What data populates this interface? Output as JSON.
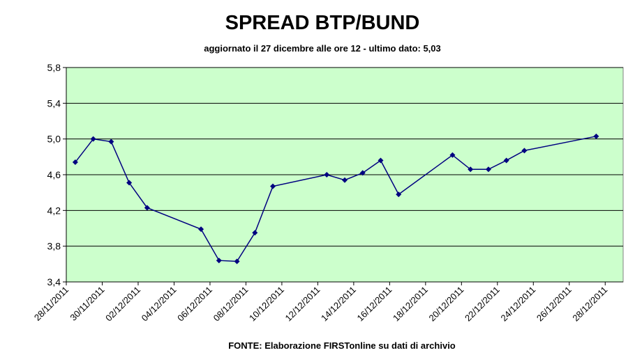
{
  "chart_data": {
    "type": "line",
    "title": "SPREAD BTP/BUND",
    "subtitle": "aggiornato il 27 dicembre alle ore 12 - ultimo dato: 5,03",
    "source": "FONTE: Elaborazione FIRSTonline su dati di archivio",
    "x": [
      "28/11/2011",
      "29/11/2011",
      "30/11/2011",
      "01/12/2011",
      "02/12/2011",
      "05/12/2011",
      "06/12/2011",
      "07/12/2011",
      "08/12/2011",
      "09/12/2011",
      "12/12/2011",
      "13/12/2011",
      "14/12/2011",
      "15/12/2011",
      "16/12/2011",
      "19/12/2011",
      "20/12/2011",
      "21/12/2011",
      "22/12/2011",
      "23/12/2011",
      "27/12/2011"
    ],
    "series": [
      {
        "name": "Spread",
        "color": "#000080",
        "values": [
          4.74,
          5.0,
          4.97,
          4.51,
          4.23,
          3.99,
          3.64,
          3.63,
          3.95,
          4.47,
          4.6,
          4.54,
          4.62,
          4.76,
          4.38,
          4.82,
          4.66,
          4.66,
          4.76,
          4.87,
          5.03
        ]
      }
    ],
    "xlim": [
      "28/11/2011",
      "29/12/2011"
    ],
    "xticks": [
      "28/11/2011",
      "30/11/2011",
      "02/12/2011",
      "04/12/2011",
      "06/12/2011",
      "08/12/2011",
      "10/12/2011",
      "12/12/2011",
      "14/12/2011",
      "16/12/2011",
      "18/12/2011",
      "20/12/2011",
      "22/12/2011",
      "24/12/2011",
      "26/12/2011",
      "28/12/2011"
    ],
    "ylim": [
      3.4,
      5.8
    ],
    "yticks": [
      {
        "value": 3.4,
        "label": "3,4"
      },
      {
        "value": 3.8,
        "label": "3,8"
      },
      {
        "value": 4.2,
        "label": "4,2"
      },
      {
        "value": 4.6,
        "label": "4,6"
      },
      {
        "value": 5.0,
        "label": "5,0"
      },
      {
        "value": 5.4,
        "label": "5,4"
      },
      {
        "value": 5.8,
        "label": "5,8"
      }
    ],
    "grid": true,
    "plot_background": "#ccffcc"
  }
}
